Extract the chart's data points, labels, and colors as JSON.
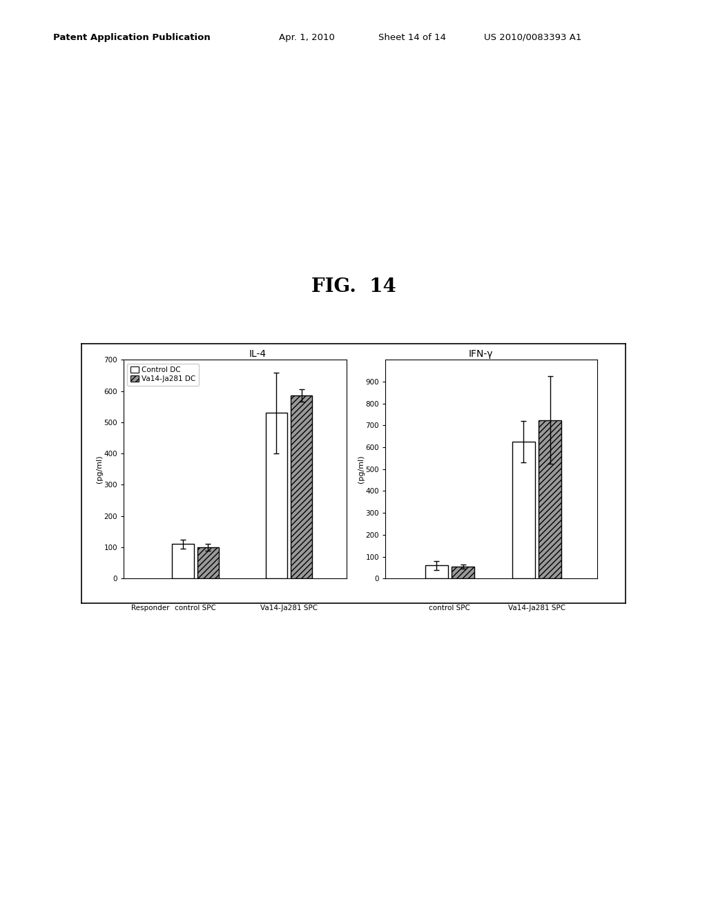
{
  "fig_title": "FIG.  14",
  "patent_line1": "Patent Application Publication",
  "patent_line2": "Apr. 1, 2010",
  "patent_line3": "Sheet 14 of 14",
  "patent_line4": "US 2010/0083393 A1",
  "left_panel": {
    "title": "IL-4",
    "ylabel": "(pg/ml)",
    "ylim": [
      0,
      700
    ],
    "yticks": [
      0,
      100,
      200,
      300,
      400,
      500,
      600,
      700
    ],
    "control_dc_values": [
      110,
      530
    ],
    "vja_dc_values": [
      100,
      585
    ],
    "control_dc_err": [
      15,
      130
    ],
    "vja_dc_err": [
      12,
      20
    ],
    "group_labels": [
      "control SPC",
      "Va14-Ja281 SPC"
    ],
    "responder_label": "Responder"
  },
  "right_panel": {
    "title": "IFN-γ",
    "ylabel": "(pg/ml)",
    "ylim": [
      0,
      1000
    ],
    "yticks": [
      0,
      100,
      200,
      300,
      400,
      500,
      600,
      700,
      800,
      900
    ],
    "control_dc_values": [
      60,
      625
    ],
    "vja_dc_values": [
      55,
      725
    ],
    "control_dc_err": [
      20,
      95
    ],
    "vja_dc_err": [
      10,
      200
    ],
    "group_labels": [
      "control SPC",
      "Va14-Ja281 SPC"
    ]
  },
  "legend_control_label": "Control DC",
  "legend_vja_label": "Va14-Ja281 DC",
  "ctrl_color": "white",
  "vja_color": "#999999",
  "bar_width": 0.3,
  "background_color": "white"
}
